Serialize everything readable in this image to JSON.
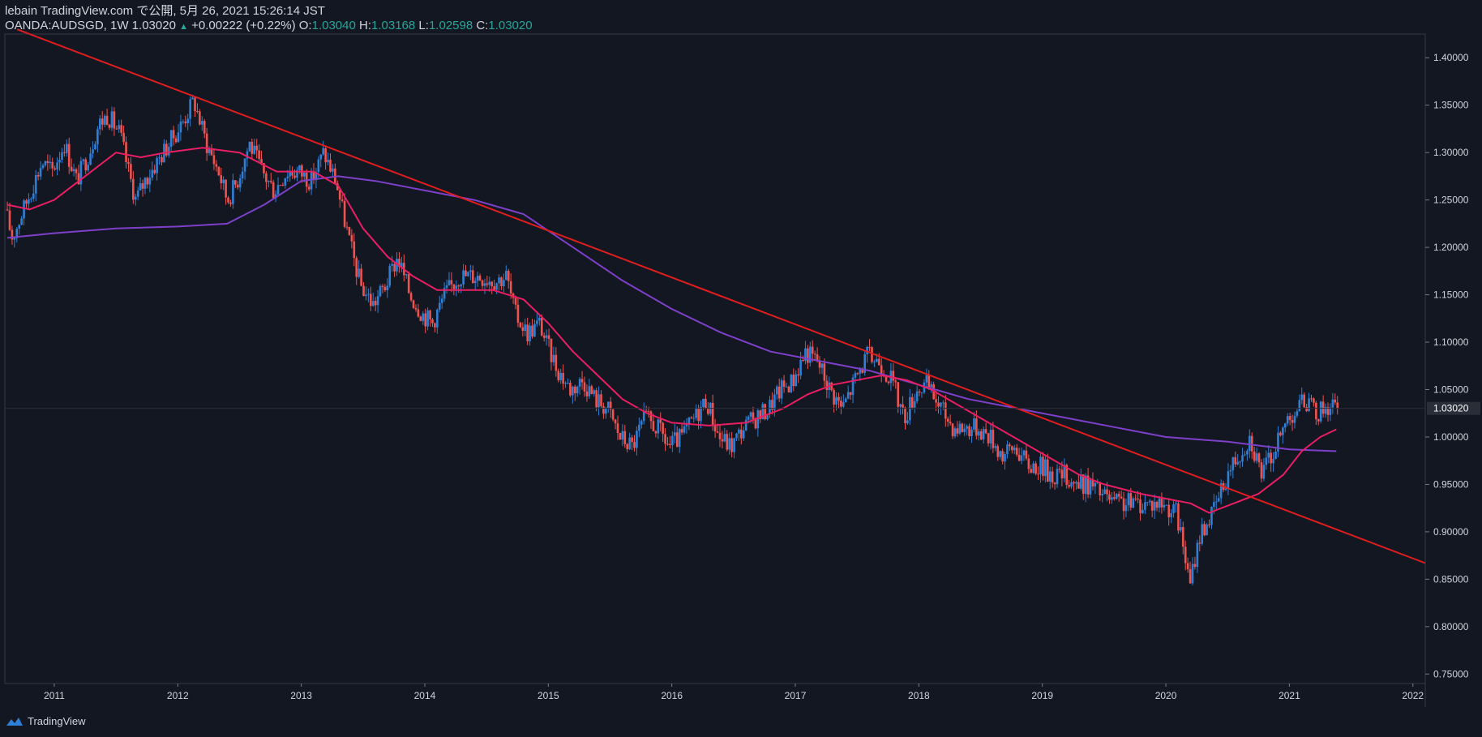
{
  "header": {
    "published": "lebain TradingView.com で公開, 5月 26, 2021 15:26:14 JST",
    "symbol": "OANDA:AUDSGD, 1W 1.03020",
    "change": "+0.00222 (+0.22%)",
    "open_label": "O:",
    "open": "1.03040",
    "high_label": "H:",
    "high": "1.03168",
    "low_label": "L:",
    "low": "1.02598",
    "close_label": "C:",
    "close": "1.03020"
  },
  "footer": {
    "brand": "TradingView"
  },
  "colors": {
    "background": "#131722",
    "up": "#2f7fd6",
    "down": "#ef5350",
    "trendline": "#e01e1e",
    "ma_short": "#e91e63",
    "ma_long": "#7e40c9",
    "last_price_bg": "#2a2e39"
  },
  "chart_data": {
    "type": "candlestick",
    "timeframe": "1W",
    "instrument": "OANDA:AUDSGD",
    "ylim": [
      0.74,
      1.425
    ],
    "xlim": [
      2010.6,
      2022.1
    ],
    "y_ticks": [
      "1.40000",
      "1.35000",
      "1.30000",
      "1.25000",
      "1.20000",
      "1.15000",
      "1.10000",
      "1.05000",
      "1.00000",
      "0.95000",
      "0.90000",
      "0.85000",
      "0.80000",
      "0.75000"
    ],
    "x_ticks": [
      "2011",
      "2012",
      "2013",
      "2014",
      "2015",
      "2016",
      "2017",
      "2018",
      "2019",
      "2020",
      "2021",
      "2022"
    ],
    "last_price": "1.03020",
    "price_path": [
      [
        2010.62,
        1.24
      ],
      [
        2010.68,
        1.21
      ],
      [
        2010.8,
        1.25
      ],
      [
        2010.92,
        1.29
      ],
      [
        2011.0,
        1.28
      ],
      [
        2011.1,
        1.31
      ],
      [
        2011.2,
        1.27
      ],
      [
        2011.3,
        1.3
      ],
      [
        2011.38,
        1.33
      ],
      [
        2011.45,
        1.34
      ],
      [
        2011.55,
        1.32
      ],
      [
        2011.62,
        1.28
      ],
      [
        2011.68,
        1.25
      ],
      [
        2011.75,
        1.27
      ],
      [
        2011.85,
        1.29
      ],
      [
        2011.95,
        1.31
      ],
      [
        2012.05,
        1.33
      ],
      [
        2012.15,
        1.355
      ],
      [
        2012.25,
        1.31
      ],
      [
        2012.35,
        1.28
      ],
      [
        2012.42,
        1.25
      ],
      [
        2012.5,
        1.27
      ],
      [
        2012.6,
        1.31
      ],
      [
        2012.7,
        1.28
      ],
      [
        2012.8,
        1.26
      ],
      [
        2012.9,
        1.28
      ],
      [
        2013.0,
        1.28
      ],
      [
        2013.1,
        1.27
      ],
      [
        2013.2,
        1.3
      ],
      [
        2013.3,
        1.27
      ],
      [
        2013.35,
        1.24
      ],
      [
        2013.42,
        1.2
      ],
      [
        2013.5,
        1.16
      ],
      [
        2013.6,
        1.14
      ],
      [
        2013.7,
        1.16
      ],
      [
        2013.8,
        1.19
      ],
      [
        2013.9,
        1.15
      ],
      [
        2014.0,
        1.13
      ],
      [
        2014.08,
        1.12
      ],
      [
        2014.18,
        1.15
      ],
      [
        2014.3,
        1.17
      ],
      [
        2014.45,
        1.17
      ],
      [
        2014.6,
        1.165
      ],
      [
        2014.68,
        1.17
      ],
      [
        2014.75,
        1.13
      ],
      [
        2014.85,
        1.11
      ],
      [
        2014.95,
        1.12
      ],
      [
        2015.0,
        1.1
      ],
      [
        2015.1,
        1.07
      ],
      [
        2015.2,
        1.05
      ],
      [
        2015.3,
        1.06
      ],
      [
        2015.4,
        1.04
      ],
      [
        2015.5,
        1.03
      ],
      [
        2015.6,
        1.0
      ],
      [
        2015.7,
        0.99
      ],
      [
        2015.8,
        1.02
      ],
      [
        2015.9,
        1.01
      ],
      [
        2016.0,
        0.99
      ],
      [
        2016.1,
        1.0
      ],
      [
        2016.2,
        1.02
      ],
      [
        2016.3,
        1.04
      ],
      [
        2016.4,
        1.0
      ],
      [
        2016.5,
        0.99
      ],
      [
        2016.6,
        1.01
      ],
      [
        2016.7,
        1.02
      ],
      [
        2016.8,
        1.03
      ],
      [
        2016.9,
        1.05
      ],
      [
        2017.0,
        1.06
      ],
      [
        2017.1,
        1.09
      ],
      [
        2017.2,
        1.08
      ],
      [
        2017.3,
        1.05
      ],
      [
        2017.4,
        1.03
      ],
      [
        2017.5,
        1.06
      ],
      [
        2017.6,
        1.085
      ],
      [
        2017.7,
        1.08
      ],
      [
        2017.8,
        1.06
      ],
      [
        2017.9,
        1.02
      ],
      [
        2018.0,
        1.05
      ],
      [
        2018.08,
        1.055
      ],
      [
        2018.2,
        1.03
      ],
      [
        2018.3,
        1.01
      ],
      [
        2018.4,
        1.01
      ],
      [
        2018.5,
        1.01
      ],
      [
        2018.6,
        1.0
      ],
      [
        2018.7,
        0.98
      ],
      [
        2018.8,
        0.99
      ],
      [
        2018.9,
        0.97
      ],
      [
        2019.0,
        0.97
      ],
      [
        2019.1,
        0.96
      ],
      [
        2019.2,
        0.96
      ],
      [
        2019.3,
        0.95
      ],
      [
        2019.4,
        0.95
      ],
      [
        2019.5,
        0.94
      ],
      [
        2019.6,
        0.93
      ],
      [
        2019.7,
        0.93
      ],
      [
        2019.8,
        0.93
      ],
      [
        2019.9,
        0.93
      ],
      [
        2020.0,
        0.93
      ],
      [
        2020.1,
        0.92
      ],
      [
        2020.17,
        0.88
      ],
      [
        2020.21,
        0.84
      ],
      [
        2020.25,
        0.87
      ],
      [
        2020.3,
        0.9
      ],
      [
        2020.35,
        0.91
      ],
      [
        2020.4,
        0.92
      ],
      [
        2020.5,
        0.955
      ],
      [
        2020.55,
        0.97
      ],
      [
        2020.65,
        0.99
      ],
      [
        2020.7,
        1.0
      ],
      [
        2020.75,
        0.98
      ],
      [
        2020.8,
        0.96
      ],
      [
        2020.85,
        0.975
      ],
      [
        2020.95,
        1.0
      ],
      [
        2021.0,
        1.02
      ],
      [
        2021.08,
        1.03
      ],
      [
        2021.15,
        1.04
      ],
      [
        2021.22,
        1.025
      ],
      [
        2021.3,
        1.03
      ],
      [
        2021.36,
        1.035
      ],
      [
        2021.4,
        1.0302
      ]
    ],
    "trendline": {
      "points": [
        [
          2010.7,
          1.43
        ],
        [
          2022.1,
          0.867
        ]
      ]
    },
    "ma_short": {
      "points": [
        [
          2010.62,
          1.245
        ],
        [
          2010.8,
          1.24
        ],
        [
          2011.0,
          1.25
        ],
        [
          2011.2,
          1.27
        ],
        [
          2011.5,
          1.3
        ],
        [
          2011.7,
          1.295
        ],
        [
          2011.9,
          1.3
        ],
        [
          2012.2,
          1.305
        ],
        [
          2012.5,
          1.3
        ],
        [
          2012.8,
          1.28
        ],
        [
          2013.1,
          1.28
        ],
        [
          2013.3,
          1.265
        ],
        [
          2013.5,
          1.22
        ],
        [
          2013.7,
          1.19
        ],
        [
          2013.9,
          1.17
        ],
        [
          2014.1,
          1.155
        ],
        [
          2014.3,
          1.155
        ],
        [
          2014.55,
          1.155
        ],
        [
          2014.8,
          1.145
        ],
        [
          2015.0,
          1.12
        ],
        [
          2015.2,
          1.09
        ],
        [
          2015.4,
          1.065
        ],
        [
          2015.6,
          1.04
        ],
        [
          2015.8,
          1.025
        ],
        [
          2016.0,
          1.015
        ],
        [
          2016.3,
          1.012
        ],
        [
          2016.6,
          1.015
        ],
        [
          2016.9,
          1.03
        ],
        [
          2017.1,
          1.045
        ],
        [
          2017.3,
          1.055
        ],
        [
          2017.5,
          1.06
        ],
        [
          2017.7,
          1.065
        ],
        [
          2017.9,
          1.06
        ],
        [
          2018.1,
          1.05
        ],
        [
          2018.3,
          1.035
        ],
        [
          2018.5,
          1.02
        ],
        [
          2018.7,
          1.005
        ],
        [
          2018.9,
          0.99
        ],
        [
          2019.1,
          0.975
        ],
        [
          2019.3,
          0.96
        ],
        [
          2019.5,
          0.95
        ],
        [
          2019.8,
          0.94
        ],
        [
          2020.0,
          0.935
        ],
        [
          2020.2,
          0.93
        ],
        [
          2020.35,
          0.92
        ],
        [
          2020.55,
          0.93
        ],
        [
          2020.75,
          0.94
        ],
        [
          2020.95,
          0.96
        ],
        [
          2021.1,
          0.985
        ],
        [
          2021.25,
          1.0
        ],
        [
          2021.38,
          1.008
        ]
      ]
    },
    "ma_long": {
      "points": [
        [
          2010.62,
          1.21
        ],
        [
          2011.0,
          1.215
        ],
        [
          2011.5,
          1.22
        ],
        [
          2012.0,
          1.222
        ],
        [
          2012.4,
          1.225
        ],
        [
          2012.7,
          1.245
        ],
        [
          2013.0,
          1.27
        ],
        [
          2013.3,
          1.275
        ],
        [
          2013.6,
          1.27
        ],
        [
          2014.0,
          1.26
        ],
        [
          2014.4,
          1.25
        ],
        [
          2014.8,
          1.235
        ],
        [
          2015.2,
          1.2
        ],
        [
          2015.6,
          1.165
        ],
        [
          2016.0,
          1.135
        ],
        [
          2016.4,
          1.11
        ],
        [
          2016.8,
          1.09
        ],
        [
          2017.2,
          1.08
        ],
        [
          2017.6,
          1.07
        ],
        [
          2018.0,
          1.055
        ],
        [
          2018.4,
          1.04
        ],
        [
          2018.8,
          1.03
        ],
        [
          2019.2,
          1.02
        ],
        [
          2019.6,
          1.01
        ],
        [
          2020.0,
          1.0
        ],
        [
          2020.5,
          0.995
        ],
        [
          2021.0,
          0.987
        ],
        [
          2021.38,
          0.985
        ]
      ]
    }
  }
}
